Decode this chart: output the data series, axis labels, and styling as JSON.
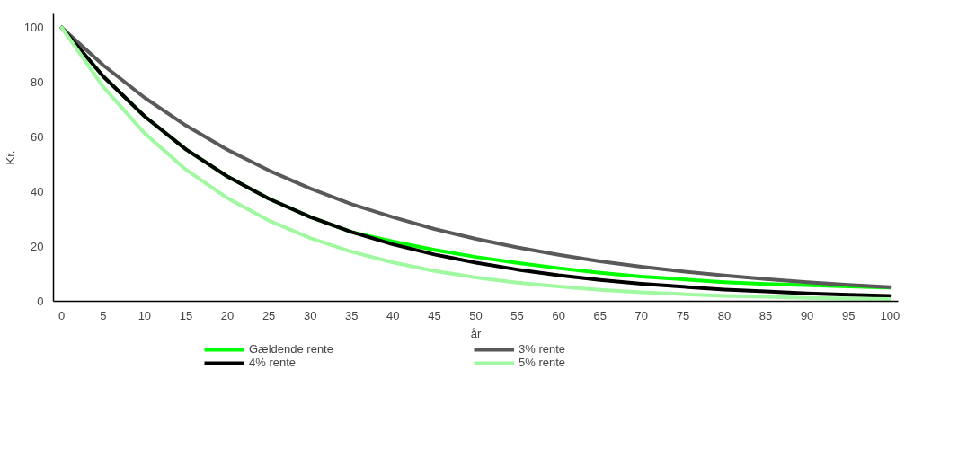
{
  "chart_data": {
    "type": "line",
    "xlabel": "år",
    "ylabel": "Kr.",
    "x": [
      0,
      5,
      10,
      15,
      20,
      25,
      30,
      35,
      40,
      45,
      50,
      55,
      60,
      65,
      70,
      75,
      80,
      85,
      90,
      95,
      100
    ],
    "series": [
      {
        "name": "Gældende rente",
        "color": "#00ff00",
        "values": [
          100,
          82.2,
          67.6,
          55.5,
          45.6,
          37.5,
          30.8,
          25.3,
          21.8,
          18.8,
          16.2,
          14.0,
          12.1,
          10.4,
          9.0,
          8.0,
          7.0,
          6.3,
          5.9,
          5.4,
          5.0
        ]
      },
      {
        "name": "3% rente",
        "color": "#595959",
        "values": [
          100,
          86.3,
          74.4,
          64.2,
          55.4,
          47.8,
          41.2,
          35.5,
          30.7,
          26.4,
          22.8,
          19.7,
          17.0,
          14.6,
          12.6,
          10.9,
          9.4,
          8.1,
          7.0,
          6.0,
          5.2
        ]
      },
      {
        "name": "4% rente",
        "color": "#000000",
        "values": [
          100,
          82.2,
          67.6,
          55.5,
          45.6,
          37.5,
          30.8,
          25.3,
          20.8,
          17.1,
          14.1,
          11.6,
          9.5,
          7.8,
          6.4,
          5.3,
          4.3,
          3.6,
          2.9,
          2.4,
          2.0
        ]
      },
      {
        "name": "5% rente",
        "color": "#a0f8a0",
        "values": [
          100,
          78.4,
          61.4,
          48.1,
          37.7,
          29.5,
          23.1,
          18.1,
          14.2,
          11.1,
          8.7,
          6.8,
          5.4,
          4.2,
          3.3,
          2.6,
          2.0,
          1.6,
          1.2,
          1.0,
          0.8
        ]
      }
    ],
    "xlim": [
      -1,
      101
    ],
    "ylim": [
      0,
      105
    ],
    "xticks": [
      0,
      5,
      10,
      15,
      20,
      25,
      30,
      35,
      40,
      45,
      50,
      55,
      60,
      65,
      70,
      75,
      80,
      85,
      90,
      95,
      100
    ],
    "yticks": [
      0,
      20,
      40,
      60,
      80,
      100
    ],
    "grid": false,
    "legend": "bottom",
    "marker": "none",
    "line_style": "solid"
  }
}
